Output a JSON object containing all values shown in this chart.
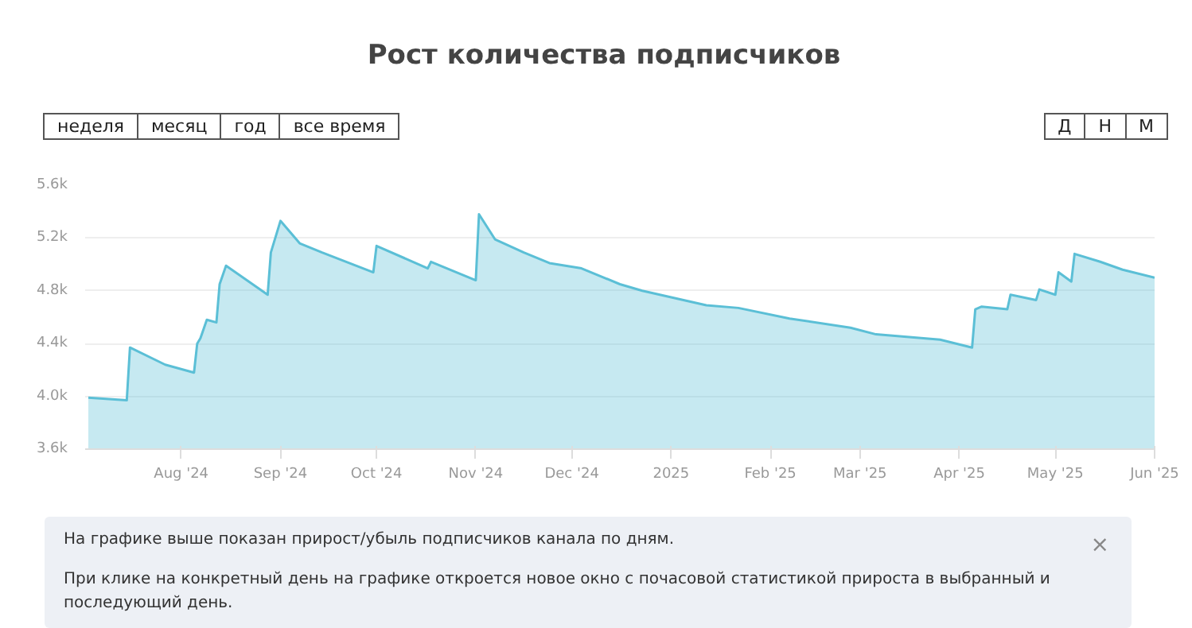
{
  "chart_data": {
    "type": "area",
    "title": "Рост количества подписчиков",
    "x": [
      "2024-07-03",
      "2024-07-15",
      "2024-07-16",
      "2024-07-27",
      "2024-08-05",
      "2024-08-06",
      "2024-08-07",
      "2024-08-09",
      "2024-08-12",
      "2024-08-13",
      "2024-08-15",
      "2024-08-28",
      "2024-08-29",
      "2024-09-01",
      "2024-09-07",
      "2024-09-14",
      "2024-09-30",
      "2024-10-01",
      "2024-10-17",
      "2024-10-18",
      "2024-11-01",
      "2024-11-02",
      "2024-11-07",
      "2024-11-16",
      "2024-11-24",
      "2024-12-04",
      "2024-12-16",
      "2024-12-23",
      "2025-01-12",
      "2025-01-22",
      "2025-02-07",
      "2025-02-26",
      "2025-03-06",
      "2025-03-26",
      "2025-04-05",
      "2025-04-06",
      "2025-04-08",
      "2025-04-16",
      "2025-04-17",
      "2025-04-25",
      "2025-04-26",
      "2025-05-01",
      "2025-05-02",
      "2025-05-06",
      "2025-05-07",
      "2025-05-15",
      "2025-05-22",
      "2025-06-01"
    ],
    "series": [
      {
        "color": "#5bbfd6",
        "values": [
          3990,
          3970,
          4370,
          4240,
          4180,
          4400,
          4440,
          4580,
          4560,
          4850,
          4990,
          4770,
          5090,
          5330,
          5160,
          5090,
          4940,
          5140,
          4970,
          5020,
          4880,
          5380,
          5190,
          5090,
          5010,
          4970,
          4850,
          4800,
          4690,
          4670,
          4590,
          4520,
          4470,
          4430,
          4370,
          4660,
          4680,
          4660,
          4770,
          4730,
          4810,
          4770,
          4940,
          4870,
          5080,
          5020,
          4960,
          4900
        ]
      }
    ],
    "xlim": [
      "2024-07-02",
      "2025-06-01"
    ],
    "xticks": [
      {
        "value": "2024-08-01",
        "label": "Aug '24"
      },
      {
        "value": "2024-09-01",
        "label": "Sep '24"
      },
      {
        "value": "2024-10-01",
        "label": "Oct '24"
      },
      {
        "value": "2024-11-01",
        "label": "Nov '24"
      },
      {
        "value": "2024-12-01",
        "label": "Dec '24"
      },
      {
        "value": "2025-01-01",
        "label": "2025"
      },
      {
        "value": "2025-02-01",
        "label": "Feb '25"
      },
      {
        "value": "2025-03-01",
        "label": "Mar '25"
      },
      {
        "value": "2025-04-01",
        "label": "Apr '25"
      },
      {
        "value": "2025-05-01",
        "label": "May '25"
      },
      {
        "value": "2025-06-01",
        "label": "Jun '25"
      }
    ],
    "ylim": [
      3600,
      5600
    ],
    "yticks": [
      {
        "value": 3600,
        "label": "3.6k"
      },
      {
        "value": 4000,
        "label": "4.0k"
      },
      {
        "value": 4400,
        "label": "4.4k"
      },
      {
        "value": 4800,
        "label": "4.8k"
      },
      {
        "value": 5200,
        "label": "5.2k"
      },
      {
        "value": 5600,
        "label": "5.6k"
      }
    ],
    "grid": "y",
    "annotations": [
      "неделя",
      "месяц",
      "год",
      "все время",
      "Д",
      "Н",
      "М",
      "На графике выше показан прирост/убыль подписчиков канала по дням.",
      "При клике на конкретный день на графике откроется новое окно с почасовой статистикой прироста в выбранный и последующий день.",
      "×"
    ]
  }
}
